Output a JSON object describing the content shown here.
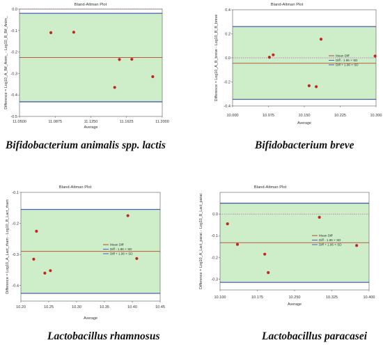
{
  "captions": [
    "Bifidobacterium animalis spp. lactis",
    "Bifidobacterium breve",
    "Lactobacillus rhamnosus",
    "Lactobacillus paracasei"
  ],
  "colors": {
    "band_fill": "#cdeec9",
    "mean_line": "#b5462b",
    "limit_line": "#4a5db0",
    "zero_line": "#c04fc0",
    "point": "#c0281d"
  },
  "chart_data": [
    {
      "type": "scatter",
      "title": "Bland-Altman Plot",
      "xlabel": "Average",
      "ylabel": "Difference = Log10_A_Bif_Anim_ - Log10_B_Bif_Anim_",
      "xlim": [
        11.05,
        11.2
      ],
      "ylim": [
        -0.5,
        0.0
      ],
      "xticks": [
        "11.0500",
        "11.0875",
        "11.1250",
        "11.1625",
        "11.2000"
      ],
      "yticks": [
        "0.0",
        "-0.1",
        "-0.2",
        "-0.3",
        "-0.4",
        "-0.5"
      ],
      "legend": [],
      "points": [
        {
          "x": 11.083,
          "y": -0.11
        },
        {
          "x": 11.107,
          "y": -0.108
        },
        {
          "x": 11.15,
          "y": -0.365
        },
        {
          "x": 11.155,
          "y": -0.235
        },
        {
          "x": 11.168,
          "y": -0.234
        },
        {
          "x": 11.19,
          "y": -0.315
        }
      ],
      "mean_diff": -0.226,
      "upper_limit": -0.02,
      "lower_limit": -0.432,
      "zero_line": 0.0,
      "grid": false
    },
    {
      "type": "scatter",
      "title": "Bland-Altman Plot",
      "xlabel": "Average",
      "ylabel": "Difference = Log10_A_B_breve - Log10_B_B_breve",
      "xlim": [
        10.0,
        10.3
      ],
      "ylim": [
        -0.4,
        0.4
      ],
      "xticks": [
        "10.000",
        "10.075",
        "10.150",
        "10.225",
        "10.300"
      ],
      "yticks": [
        "0.4",
        "0.2",
        "0.0",
        "-0.2",
        "-0.4"
      ],
      "legend": [
        "Mean Diff",
        "Diff - 1.96 × SD",
        "Diff + 1.96 × SD"
      ],
      "legend_position": "right",
      "points": [
        {
          "x": 10.077,
          "y": 0.005
        },
        {
          "x": 10.085,
          "y": 0.025
        },
        {
          "x": 10.16,
          "y": -0.232
        },
        {
          "x": 10.175,
          "y": -0.24
        },
        {
          "x": 10.185,
          "y": 0.155
        },
        {
          "x": 10.298,
          "y": 0.015
        }
      ],
      "mean_diff": -0.045,
      "upper_limit": 0.26,
      "lower_limit": -0.345,
      "zero_line": 0.0,
      "grid": false
    },
    {
      "type": "scatter",
      "title": "Bland-Altman Plot",
      "xlabel": "Average",
      "ylabel": "Difference = Log10_A_Lact_rham - Log10_B_Lact_rham",
      "xlim": [
        10.2,
        10.45
      ],
      "ylim": [
        -0.45,
        -0.1
      ],
      "xticks": [
        "10.20",
        "10.25",
        "10.30",
        "10.35",
        "10.40",
        "10.45"
      ],
      "yticks": [
        "-0.1",
        "-0.2",
        "-0.3",
        "-0.4"
      ],
      "legend": [
        "Mean Diff",
        "Diff - 1.96 × SD",
        "Diff + 1.96 × SD"
      ],
      "legend_position": "right",
      "points": [
        {
          "x": 10.223,
          "y": -0.315
        },
        {
          "x": 10.228,
          "y": -0.225
        },
        {
          "x": 10.243,
          "y": -0.36
        },
        {
          "x": 10.253,
          "y": -0.352
        },
        {
          "x": 10.392,
          "y": -0.175
        },
        {
          "x": 10.408,
          "y": -0.313
        }
      ],
      "mean_diff": -0.29,
      "upper_limit": -0.155,
      "lower_limit": -0.425,
      "zero_line": null,
      "grid": false
    },
    {
      "type": "scatter",
      "title": "Bland-Altman Plot",
      "xlabel": "Average",
      "ylabel": "Difference = Log10_A_Lact_parac - Log10_B_Lact_parac",
      "xlim": [
        10.1,
        10.4
      ],
      "ylim": [
        -0.35,
        0.1
      ],
      "xticks": [
        "10.100",
        "10.175",
        "10.250",
        "10.325",
        "10.400"
      ],
      "yticks": [
        "0.0",
        "-0.1",
        "-0.2",
        "-0.3"
      ],
      "legend": [
        "Mean Diff",
        "Diff - 1.96 × SD",
        "Diff + 1.96 × SD"
      ],
      "legend_position": "right",
      "points": [
        {
          "x": 10.115,
          "y": -0.045
        },
        {
          "x": 10.135,
          "y": -0.14
        },
        {
          "x": 10.19,
          "y": -0.185
        },
        {
          "x": 10.197,
          "y": -0.27
        },
        {
          "x": 10.3,
          "y": -0.015
        },
        {
          "x": 10.375,
          "y": -0.145
        }
      ],
      "mean_diff": -0.132,
      "upper_limit": 0.05,
      "lower_limit": -0.315,
      "zero_line": 0.0,
      "grid": false
    }
  ]
}
